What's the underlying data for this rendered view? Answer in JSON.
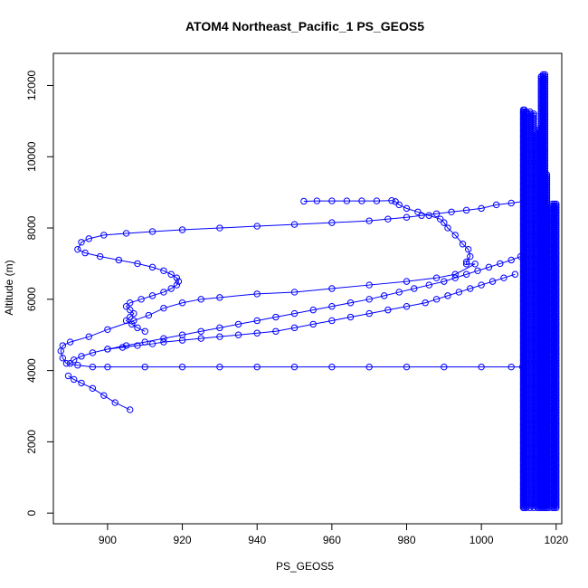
{
  "chart_data": {
    "type": "scatter",
    "title": "ATOM4 Northeast_Pacific_1 PS_GEOS5",
    "xlabel": "PS_GEOS5",
    "ylabel": "Altitude (m)",
    "xlim": [
      885.5,
      1021.5
    ],
    "ylim": [
      -300,
      12900
    ],
    "x_ticks": [
      900,
      920,
      940,
      960,
      980,
      1000,
      1020
    ],
    "y_ticks": [
      0,
      2000,
      4000,
      6000,
      8000,
      10000,
      12000
    ],
    "marker": "open-circle",
    "color": "#0000ff",
    "grid": false,
    "legend": "none",
    "series": [
      {
        "style": "points-line",
        "x": [
          952.5,
          956,
          960,
          964,
          968,
          972,
          976,
          977,
          978,
          980,
          983,
          986,
          989,
          990,
          991,
          993,
          995,
          996.5,
          997,
          996,
          996,
          998.3,
          993,
          988,
          980,
          970,
          960,
          950,
          940,
          930,
          925,
          920,
          915,
          911,
          907,
          900,
          895,
          890,
          888,
          887.5,
          888,
          889,
          892,
          896,
          900,
          910,
          920,
          930,
          940,
          950,
          960,
          970,
          980,
          990,
          1000,
          1008,
          1011
        ],
        "y": [
          8750,
          8760,
          8760,
          8760,
          8760,
          8760,
          8770,
          8740,
          8650,
          8550,
          8450,
          8350,
          8250,
          8150,
          8000,
          7800,
          7550,
          7400,
          7200,
          7050,
          6990,
          6990,
          6700,
          6600,
          6500,
          6400,
          6300,
          6200,
          6150,
          6050,
          6000,
          5900,
          5750,
          5550,
          5400,
          5150,
          4950,
          4800,
          4700,
          4550,
          4350,
          4200,
          4150,
          4100,
          4100,
          4100,
          4100,
          4100,
          4100,
          4100,
          4100,
          4100,
          4100,
          4100,
          4100,
          4100,
          4100
        ]
      },
      {
        "style": "points-line",
        "x": [
          1011.5,
          1008,
          1004,
          1000,
          996,
          992,
          988,
          984,
          980,
          975,
          970,
          960,
          950,
          940,
          930,
          920,
          912,
          905,
          899,
          895,
          893,
          892,
          894,
          898,
          903,
          908,
          912,
          915,
          917,
          918.5,
          919,
          918.5,
          917,
          915,
          912,
          909,
          906,
          905,
          906,
          907,
          906,
          905,
          906.5,
          908,
          910
        ],
        "y": [
          8750,
          8700,
          8650,
          8550,
          8500,
          8450,
          8400,
          8350,
          8300,
          8250,
          8200,
          8150,
          8100,
          8050,
          8000,
          7950,
          7900,
          7850,
          7800,
          7700,
          7600,
          7400,
          7300,
          7200,
          7100,
          7000,
          6900,
          6800,
          6700,
          6600,
          6500,
          6400,
          6300,
          6200,
          6100,
          6000,
          5900,
          5800,
          5700,
          5600,
          5500,
          5400,
          5300,
          5200,
          5100
        ]
      },
      {
        "style": "points-line",
        "x": [
          1009,
          1006,
          1003,
          1000,
          997,
          994,
          991,
          988,
          985,
          980,
          975,
          970,
          965,
          960,
          955,
          950,
          945,
          940,
          935,
          930,
          925,
          920,
          915,
          912,
          908,
          904,
          900,
          896,
          893,
          891,
          890
        ],
        "y": [
          6700,
          6600,
          6500,
          6400,
          6300,
          6200,
          6100,
          6000,
          5900,
          5800,
          5700,
          5600,
          5500,
          5400,
          5300,
          5200,
          5100,
          5050,
          5000,
          4950,
          4900,
          4850,
          4800,
          4750,
          4700,
          4650,
          4600,
          4500,
          4400,
          4300,
          4200
        ]
      },
      {
        "style": "points-line",
        "x": [
          1010.5,
          1008,
          1005,
          1002,
          999,
          996,
          993,
          990,
          986,
          982,
          978,
          974,
          970,
          965,
          960,
          955,
          950,
          945,
          940,
          935,
          930,
          925,
          920,
          915,
          910,
          905,
          900
        ],
        "y": [
          7200,
          7100,
          7000,
          6900,
          6800,
          6700,
          6600,
          6500,
          6400,
          6300,
          6200,
          6100,
          6000,
          5900,
          5800,
          5700,
          5600,
          5500,
          5400,
          5300,
          5200,
          5100,
          5000,
          4900,
          4800,
          4700,
          4600
        ]
      },
      {
        "style": "points-line",
        "x": [
          889.5,
          891,
          893,
          896,
          899,
          902,
          906
        ],
        "y": [
          3850,
          3750,
          3650,
          3500,
          3300,
          3100,
          2900
        ]
      },
      {
        "style": "vertical-profiles",
        "x": [
          1011.2,
          1011.5,
          1012,
          1013,
          1014,
          1015,
          1015.5,
          1016,
          1016.5,
          1017,
          1017.5,
          1018,
          1019,
          1019.5,
          1020
        ],
        "y_min": [
          150,
          150,
          150,
          150,
          150,
          150,
          150,
          150,
          150,
          150,
          150,
          150,
          150,
          150,
          150
        ],
        "y_max": [
          11350,
          11350,
          11300,
          11300,
          11250,
          10700,
          10800,
          12250,
          12350,
          12350,
          9550,
          8600,
          8700,
          8700,
          8700
        ]
      }
    ]
  }
}
